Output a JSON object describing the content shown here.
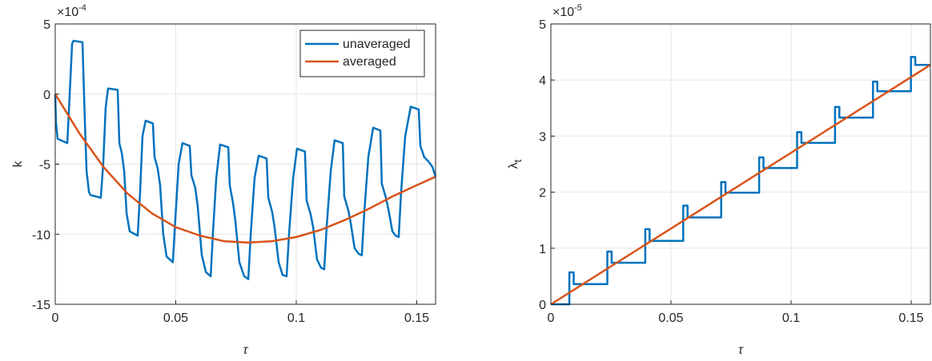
{
  "chart_data": [
    {
      "type": "line",
      "xlabel": "τ",
      "ylabel": "k",
      "y_multiplier": {
        "base": "×10",
        "exponent": "-4"
      },
      "xlim": [
        0,
        0.1578
      ],
      "xticks": [
        0,
        0.05,
        0.1,
        0.15
      ],
      "ylim": [
        -15,
        5
      ],
      "yticks": [
        -15,
        -10,
        -5,
        0,
        5
      ],
      "grid": true,
      "legend": "top-right",
      "series": [
        {
          "name": "unaveraged",
          "color": "#0072BD",
          "x": [
            0,
            0.0003,
            0.001,
            0.005,
            0.006,
            0.007,
            0.0076,
            0.0113,
            0.0123,
            0.013,
            0.014,
            0.0146,
            0.0189,
            0.0199,
            0.0209,
            0.0219,
            0.0259,
            0.0266,
            0.0276,
            0.0286,
            0.0296,
            0.0309,
            0.0342,
            0.0352,
            0.0362,
            0.0375,
            0.0405,
            0.0412,
            0.0425,
            0.0435,
            0.0448,
            0.0462,
            0.0488,
            0.0498,
            0.0512,
            0.0528,
            0.0558,
            0.0565,
            0.0581,
            0.0591,
            0.0608,
            0.0625,
            0.0645,
            0.0654,
            0.0668,
            0.0684,
            0.0718,
            0.0724,
            0.0737,
            0.0747,
            0.0764,
            0.0784,
            0.0801,
            0.0811,
            0.0827,
            0.0844,
            0.0877,
            0.0884,
            0.09,
            0.091,
            0.0927,
            0.0943,
            0.096,
            0.097,
            0.0987,
            0.1003,
            0.1036,
            0.1043,
            0.106,
            0.107,
            0.1086,
            0.1103,
            0.1116,
            0.1126,
            0.1143,
            0.1159,
            0.1193,
            0.1199,
            0.1216,
            0.1226,
            0.1242,
            0.1259,
            0.1272,
            0.1282,
            0.1299,
            0.1319,
            0.1349,
            0.1355,
            0.1372,
            0.1382,
            0.1399,
            0.1412,
            0.1425,
            0.1435,
            0.1452,
            0.1475,
            0.1508,
            0.1515,
            0.1531,
            0.1548,
            0.1565,
            0.1578
          ],
          "values": [
            0,
            -2.0,
            -3.2,
            -3.5,
            0,
            3.6,
            3.8,
            3.7,
            -2,
            -5.5,
            -7.0,
            -7.2,
            -7.4,
            -5,
            -1,
            0.4,
            0.3,
            -3.5,
            -4.2,
            -5.5,
            -8.5,
            -9.8,
            -10.1,
            -7,
            -3,
            -1.9,
            -2.1,
            -4.5,
            -5.3,
            -6.5,
            -10,
            -11.6,
            -12.0,
            -9,
            -5,
            -3.5,
            -3.7,
            -5.8,
            -6.7,
            -8,
            -11.5,
            -12.7,
            -13.0,
            -10,
            -6,
            -3.6,
            -3.8,
            -6.5,
            -7.7,
            -9,
            -12,
            -13.0,
            -13.2,
            -10,
            -6,
            -4.4,
            -4.6,
            -7.4,
            -8.4,
            -9.5,
            -12,
            -12.9,
            -13.0,
            -10,
            -6,
            -3.9,
            -4.1,
            -7.6,
            -8.6,
            -9.5,
            -11.8,
            -12.4,
            -12.5,
            -9.5,
            -5.5,
            -3.3,
            -3.5,
            -7.3,
            -8.3,
            -9.2,
            -11,
            -11.4,
            -11.5,
            -8.5,
            -4.5,
            -2.4,
            -2.6,
            -6.4,
            -7.4,
            -8.2,
            -9.8,
            -10.1,
            -10.2,
            -7,
            -3,
            -0.9,
            -1.1,
            -3.7,
            -4.5,
            -4.8,
            -5.2,
            -5.9
          ]
        },
        {
          "name": "averaged",
          "color": "#D95319",
          "x": [
            0,
            0.01,
            0.02,
            0.03,
            0.04,
            0.05,
            0.06,
            0.07,
            0.08,
            0.09,
            0.1,
            0.11,
            0.12,
            0.13,
            0.14,
            0.15,
            0.1578
          ],
          "values": [
            0,
            -2.8,
            -5.2,
            -7.1,
            -8.5,
            -9.5,
            -10.1,
            -10.5,
            -10.6,
            -10.5,
            -10.2,
            -9.7,
            -9.0,
            -8.2,
            -7.3,
            -6.5,
            -5.9
          ]
        }
      ]
    },
    {
      "type": "line",
      "xlabel": "τ",
      "ylabel": {
        "text": "λ",
        "subscript": "t"
      },
      "y_multiplier": {
        "base": "×10",
        "exponent": "-5"
      },
      "xlim": [
        0,
        0.158
      ],
      "xticks": [
        0,
        0.05,
        0.1,
        0.15
      ],
      "ylim": [
        0,
        5
      ],
      "yticks": [
        0,
        1,
        2,
        3,
        4,
        5
      ],
      "grid": true,
      "series": [
        {
          "color": "#0072BD",
          "x": [
            0,
            0.0077,
            0.0077,
            0.0095,
            0.0095,
            0.0235,
            0.0235,
            0.0253,
            0.0253,
            0.0393,
            0.0393,
            0.0411,
            0.0411,
            0.0551,
            0.0551,
            0.0569,
            0.0569,
            0.0709,
            0.0709,
            0.0727,
            0.0727,
            0.0867,
            0.0867,
            0.0885,
            0.0885,
            0.1025,
            0.1025,
            0.1043,
            0.1043,
            0.1183,
            0.1183,
            0.1201,
            0.1201,
            0.1341,
            0.1341,
            0.1359,
            0.1359,
            0.1499,
            0.1499,
            0.1517,
            0.1517,
            0.158
          ],
          "values": [
            0,
            0,
            0.57,
            0.57,
            0.36,
            0.36,
            0.94,
            0.94,
            0.74,
            0.74,
            1.34,
            1.34,
            1.13,
            1.13,
            1.76,
            1.76,
            1.55,
            1.55,
            2.18,
            2.18,
            1.99,
            1.99,
            2.62,
            2.62,
            2.43,
            2.43,
            3.07,
            3.07,
            2.88,
            2.88,
            3.52,
            3.52,
            3.33,
            3.33,
            3.97,
            3.97,
            3.8,
            3.8,
            4.41,
            4.41,
            4.27,
            4.27
          ]
        },
        {
          "color": "#D95319",
          "x": [
            0,
            0.158
          ],
          "values": [
            0,
            4.27
          ]
        }
      ]
    }
  ]
}
